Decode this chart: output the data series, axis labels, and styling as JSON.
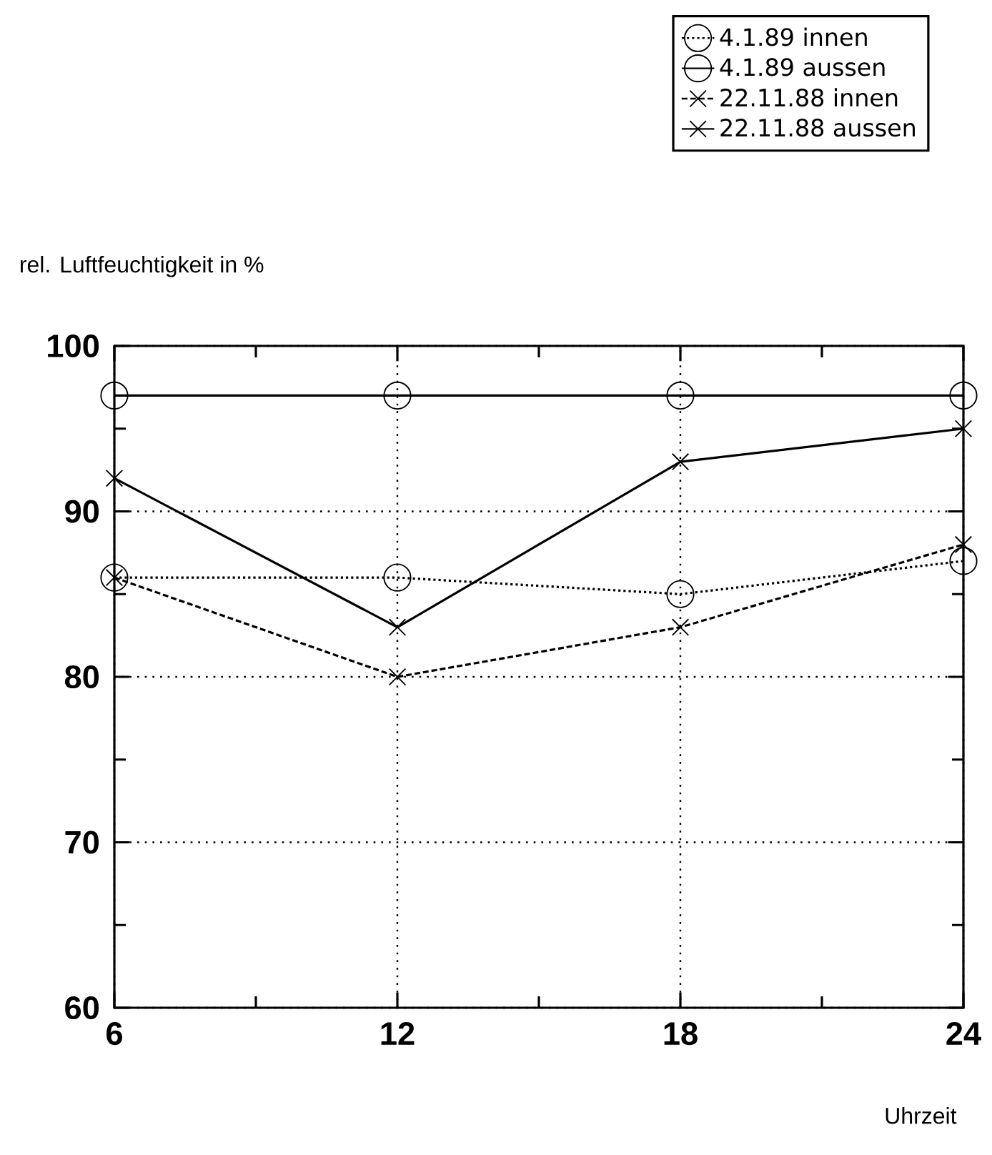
{
  "chart_data": {
    "type": "line",
    "ylabel": "rel. Luftfeuchtigkeit in %",
    "xlabel": "Uhrzeit",
    "x": [
      6,
      12,
      18,
      24
    ],
    "series": [
      {
        "name": "4.1.89 innen",
        "color": "#000000",
        "marker": "circle",
        "line_style": "dotted",
        "values": [
          86,
          86,
          85,
          87
        ]
      },
      {
        "name": "4.1.89 aussen",
        "color": "#000000",
        "marker": "circle",
        "line_style": "solid",
        "values": [
          97,
          97,
          97,
          97
        ]
      },
      {
        "name": "22.11.88 innen",
        "color": "#000000",
        "marker": "cross",
        "line_style": "dashed",
        "values": [
          86,
          80,
          83,
          88
        ]
      },
      {
        "name": "22.11.88 aussen",
        "color": "#000000",
        "marker": "cross",
        "line_style": "solid",
        "values": [
          92,
          83,
          93,
          95
        ]
      }
    ],
    "xlim": [
      6,
      24
    ],
    "ylim": [
      60,
      100
    ],
    "xticks": [
      6,
      {
        "value": 9,
        "label": null
      },
      12,
      {
        "value": 15,
        "label": null
      },
      18,
      {
        "value": 21,
        "label": null
      },
      24
    ],
    "yticks": [
      60,
      {
        "value": 65,
        "label": null
      },
      70,
      {
        "value": 75,
        "label": null
      },
      80,
      {
        "value": 85,
        "label": null
      },
      90,
      {
        "value": 95,
        "label": null
      },
      100
    ],
    "grid": true,
    "legend": "top right"
  }
}
